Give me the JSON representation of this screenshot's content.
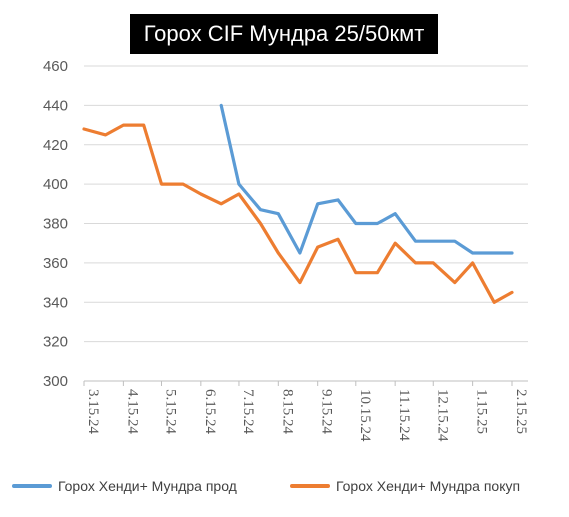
{
  "chart_data": {
    "type": "line",
    "title": "Горох CIF Мундра 25/50кмт",
    "xlabel": "",
    "ylabel": "",
    "ylim": [
      300,
      460
    ],
    "yticks": [
      300,
      320,
      340,
      360,
      380,
      400,
      420,
      440,
      460
    ],
    "grid": true,
    "legend_position": "bottom",
    "x_tick_labels": [
      "3.15.24",
      "4.15.24",
      "5.15.24",
      "6.15.24",
      "7.15.24",
      "8.15.24",
      "9.15.24",
      "10.15.24",
      "11.15.24",
      "12.15.24",
      "1.15.25",
      "2.15.25"
    ],
    "series": [
      {
        "name": "Горох Хенди+ Мундра прод",
        "color": "#5B9BD5",
        "x": [
          "2024-07-01",
          "2024-07-15",
          "2024-08-01",
          "2024-08-15",
          "2024-09-01",
          "2024-09-15",
          "2024-10-01",
          "2024-10-15",
          "2024-11-01",
          "2024-11-15",
          "2024-12-01",
          "2024-12-15",
          "2025-01-01",
          "2025-01-15",
          "2025-02-01",
          "2025-02-15"
        ],
        "values": [
          440,
          400,
          387,
          385,
          365,
          390,
          392,
          380,
          380,
          385,
          371,
          371,
          371,
          365,
          365,
          365
        ]
      },
      {
        "name": "Горох Хенди+ Мундра покуп",
        "color": "#ED7D31",
        "x": [
          "2024-03-15",
          "2024-04-01",
          "2024-04-15",
          "2024-05-01",
          "2024-05-15",
          "2024-06-01",
          "2024-06-15",
          "2024-07-01",
          "2024-07-15",
          "2024-08-01",
          "2024-08-15",
          "2024-09-01",
          "2024-09-15",
          "2024-10-01",
          "2024-10-15",
          "2024-11-01",
          "2024-11-15",
          "2024-12-01",
          "2024-12-15",
          "2025-01-01",
          "2025-01-15",
          "2025-02-01",
          "2025-02-15"
        ],
        "values": [
          428,
          425,
          430,
          430,
          400,
          400,
          395,
          390,
          395,
          380,
          365,
          350,
          368,
          372,
          355,
          355,
          370,
          360,
          360,
          350,
          360,
          340,
          345
        ]
      }
    ]
  }
}
